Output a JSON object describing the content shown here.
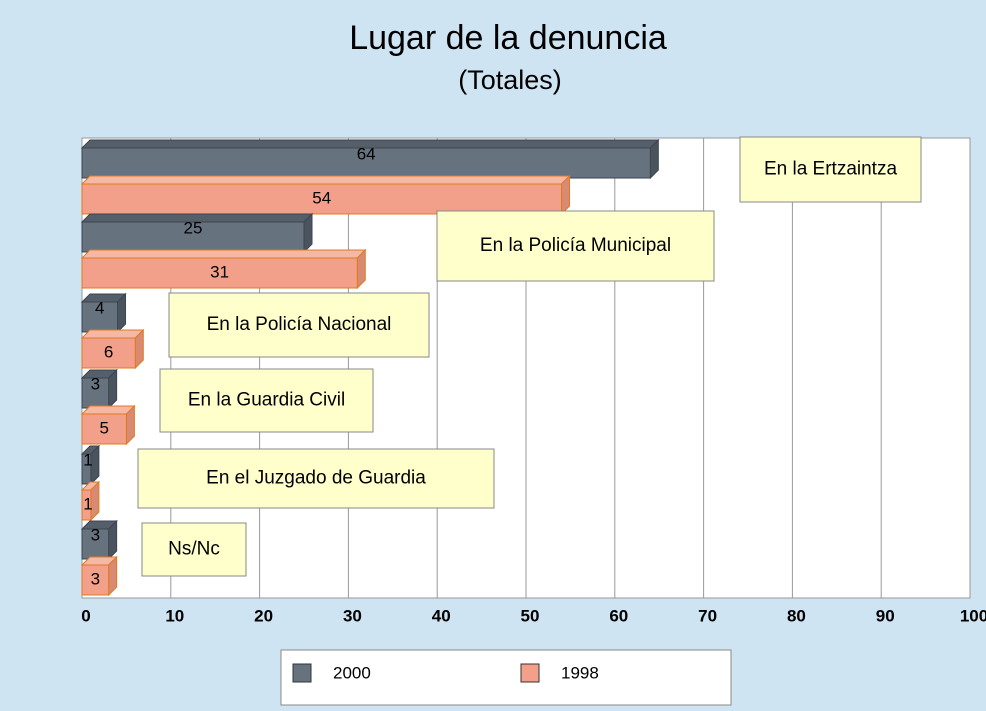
{
  "chart_data": {
    "type": "bar",
    "orientation": "horizontal",
    "title": "Lugar de la denuncia",
    "subtitle": "(Totales)",
    "categories": [
      "En la Ertzaintza",
      "En la Policía Municipal",
      "En la Policía Nacional",
      "En la Guardia Civil",
      "En el Juzgado de Guardia",
      "Ns/Nc"
    ],
    "series": [
      {
        "name": "2000",
        "color": "#66737f",
        "values": [
          64,
          25,
          4,
          3,
          1,
          3
        ]
      },
      {
        "name": "1998",
        "color": "#f2a08a",
        "values": [
          54,
          31,
          6,
          5,
          1,
          3
        ]
      }
    ],
    "xlim": [
      0,
      100
    ],
    "xticks": [
      0,
      10,
      20,
      30,
      40,
      50,
      60,
      70,
      80,
      90,
      100
    ],
    "grid": true,
    "legend": "bottom"
  }
}
